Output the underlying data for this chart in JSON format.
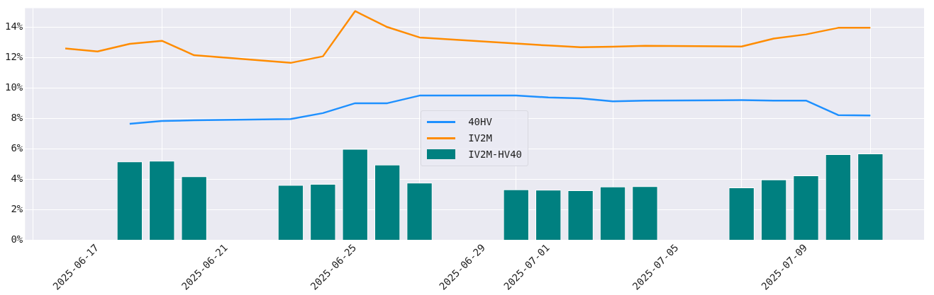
{
  "chart_data": {
    "type": "line",
    "xlim": [
      "2025-06-14T18:00",
      "2025-07-12T16:00"
    ],
    "xticks": [
      "2025-06-17",
      "2025-06-21",
      "2025-06-25",
      "2025-06-29",
      "2025-07-01",
      "2025-07-05",
      "2025-07-09"
    ],
    "ylim": [
      0,
      15.25
    ],
    "yticks": [
      {
        "value": 0,
        "label": "0%"
      },
      {
        "value": 2,
        "label": "2%"
      },
      {
        "value": 4,
        "label": "4%"
      },
      {
        "value": 6,
        "label": "6%"
      },
      {
        "value": 8,
        "label": "8%"
      },
      {
        "value": 10,
        "label": "10%"
      },
      {
        "value": 12,
        "label": "12%"
      },
      {
        "value": 14,
        "label": "14%"
      }
    ],
    "grid": true,
    "legend": "center",
    "marker": "none",
    "line_style": "solid",
    "series": [
      {
        "name": "40HV",
        "color": "#1e90ff",
        "x": [
          "2025-06-18",
          "2025-06-19",
          "2025-06-20",
          "2025-06-23",
          "2025-06-24",
          "2025-06-25",
          "2025-06-26",
          "2025-06-27",
          "2025-06-30",
          "2025-07-01",
          "2025-07-02",
          "2025-07-03",
          "2025-07-04",
          "2025-07-07",
          "2025-07-08",
          "2025-07-09",
          "2025-07-10",
          "2025-07-11"
        ],
        "values": [
          7.65,
          7.83,
          7.88,
          7.96,
          8.35,
          9.0,
          9.0,
          9.5,
          9.5,
          9.38,
          9.32,
          9.12,
          9.17,
          9.2,
          9.17,
          9.17,
          8.22,
          8.19
        ]
      },
      {
        "name": "IV2M",
        "color": "#ff8c00",
        "x": [
          "2025-06-16",
          "2025-06-17",
          "2025-06-18",
          "2025-06-19",
          "2025-06-20",
          "2025-06-23",
          "2025-06-24",
          "2025-06-25",
          "2025-06-26",
          "2025-06-27",
          "2025-06-30",
          "2025-07-01",
          "2025-07-02",
          "2025-07-03",
          "2025-07-04",
          "2025-07-07",
          "2025-07-08",
          "2025-07-09",
          "2025-07-10",
          "2025-07-11"
        ],
        "values": [
          12.6,
          12.4,
          12.9,
          13.1,
          12.15,
          11.65,
          12.08,
          15.05,
          14.0,
          13.32,
          12.92,
          12.79,
          12.68,
          12.71,
          12.77,
          12.72,
          13.25,
          13.52,
          13.95,
          13.95
        ]
      },
      {
        "name": "IV2M-HV40",
        "type": "bar",
        "color": "#008080",
        "x": [
          "2025-06-18",
          "2025-06-19",
          "2025-06-20",
          "2025-06-23",
          "2025-06-24",
          "2025-06-25",
          "2025-06-26",
          "2025-06-27",
          "2025-06-30",
          "2025-07-01",
          "2025-07-02",
          "2025-07-03",
          "2025-07-04",
          "2025-07-07",
          "2025-07-08",
          "2025-07-09",
          "2025-07-10",
          "2025-07-11"
        ],
        "values": [
          5.17,
          5.22,
          4.2,
          3.63,
          3.7,
          6.0,
          4.96,
          3.78,
          3.34,
          3.31,
          3.28,
          3.52,
          3.54,
          3.46,
          3.99,
          4.25,
          5.65,
          5.7
        ]
      }
    ]
  }
}
